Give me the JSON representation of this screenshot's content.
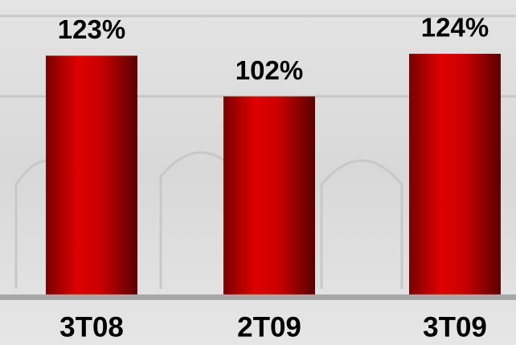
{
  "chart_data": {
    "type": "bar",
    "categories": [
      "3T08",
      "2T09",
      "3T09"
    ],
    "values": [
      123,
      102,
      124
    ],
    "value_labels": [
      "123%",
      "102%",
      "124%"
    ],
    "color": "#cc0000"
  }
}
